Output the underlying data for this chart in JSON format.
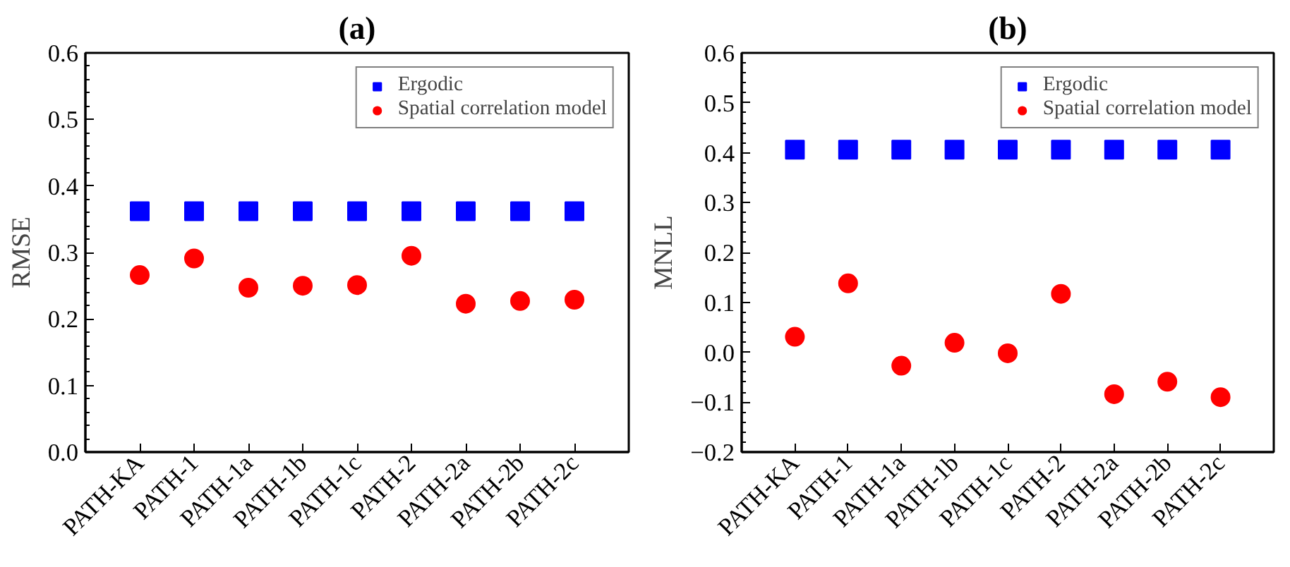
{
  "chart_data": [
    {
      "type": "scatter",
      "title": "(a)",
      "ylabel": "RMSE",
      "categories": [
        "PATH-KA",
        "PATH-1",
        "PATH-1a",
        "PATH-1b",
        "PATH-1c",
        "PATH-2",
        "PATH-2a",
        "PATH-2b",
        "PATH-2c"
      ],
      "ylim": [
        0,
        0.6
      ],
      "yticks": [
        {
          "value": 0,
          "label": "0.0"
        },
        0.1,
        0.2,
        0.3,
        0.4,
        0.5,
        0.6
      ],
      "grid": false,
      "legend": "top right",
      "series": [
        {
          "name": "Ergodic",
          "color": "#0000ff",
          "marker": "square",
          "values": [
            0.362,
            0.362,
            0.362,
            0.362,
            0.362,
            0.362,
            0.362,
            0.362,
            0.362
          ]
        },
        {
          "name": "Spatial correlation model",
          "color": "#ff0000",
          "marker": "circle",
          "values": [
            0.266,
            0.291,
            0.247,
            0.25,
            0.251,
            0.295,
            0.223,
            0.227,
            0.229
          ]
        }
      ]
    },
    {
      "type": "scatter",
      "title": "(b)",
      "ylabel": "MNLL",
      "categories": [
        "PATH-KA",
        "PATH-1",
        "PATH-1a",
        "PATH-1b",
        "PATH-1c",
        "PATH-2",
        "PATH-2a",
        "PATH-2b",
        "PATH-2c"
      ],
      "ylim": [
        -0.2,
        0.6
      ],
      "yticks": [
        -0.2,
        -0.1,
        {
          "value": 0,
          "label": "0.0"
        },
        0.1,
        0.2,
        0.3,
        0.4,
        0.5,
        0.6
      ],
      "grid": false,
      "legend": "top right",
      "series": [
        {
          "name": "Ergodic",
          "color": "#0000ff",
          "marker": "square",
          "values": [
            0.406,
            0.406,
            0.406,
            0.406,
            0.406,
            0.406,
            0.406,
            0.406,
            0.406
          ]
        },
        {
          "name": "Spatial correlation model",
          "color": "#ff0000",
          "marker": "circle",
          "values": [
            0.031,
            0.138,
            -0.027,
            0.019,
            -0.002,
            0.117,
            -0.084,
            -0.059,
            -0.09
          ]
        }
      ]
    }
  ]
}
